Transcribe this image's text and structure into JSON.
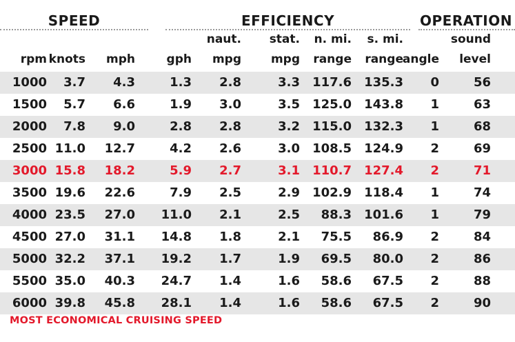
{
  "groups": {
    "speed": "SPEED",
    "efficiency": "EFFICIENCY",
    "operation": "OPERATION"
  },
  "headers": {
    "rpm": [
      "",
      "rpm"
    ],
    "knots": [
      "",
      "knots"
    ],
    "mph": [
      "",
      "mph"
    ],
    "gph": [
      "",
      "gph"
    ],
    "naut_mpg": [
      "naut.",
      "mpg"
    ],
    "stat_mpg": [
      "stat.",
      "mpg"
    ],
    "nmi_range": [
      "n. mi.",
      "range"
    ],
    "smi_range": [
      "s. mi.",
      "range"
    ],
    "angle": [
      "",
      "angle"
    ],
    "sound": [
      "sound",
      "level"
    ]
  },
  "rows": [
    [
      "1000",
      "3.7",
      "4.3",
      "1.3",
      "2.8",
      "3.3",
      "117.6",
      "135.3",
      "0",
      "56"
    ],
    [
      "1500",
      "5.7",
      "6.6",
      "1.9",
      "3.0",
      "3.5",
      "125.0",
      "143.8",
      "1",
      "63"
    ],
    [
      "2000",
      "7.8",
      "9.0",
      "2.8",
      "2.8",
      "3.2",
      "115.0",
      "132.3",
      "1",
      "68"
    ],
    [
      "2500",
      "11.0",
      "12.7",
      "4.2",
      "2.6",
      "3.0",
      "108.5",
      "124.9",
      "2",
      "69"
    ],
    [
      "3000",
      "15.8",
      "18.2",
      "5.9",
      "2.7",
      "3.1",
      "110.7",
      "127.4",
      "2",
      "71"
    ],
    [
      "3500",
      "19.6",
      "22.6",
      "7.9",
      "2.5",
      "2.9",
      "102.9",
      "118.4",
      "1",
      "74"
    ],
    [
      "4000",
      "23.5",
      "27.0",
      "11.0",
      "2.1",
      "2.5",
      "88.3",
      "101.6",
      "1",
      "79"
    ],
    [
      "4500",
      "27.0",
      "31.1",
      "14.8",
      "1.8",
      "2.1",
      "75.5",
      "86.9",
      "2",
      "84"
    ],
    [
      "5000",
      "32.2",
      "37.1",
      "19.2",
      "1.7",
      "1.9",
      "69.5",
      "80.0",
      "2",
      "86"
    ],
    [
      "5500",
      "35.0",
      "40.3",
      "24.7",
      "1.4",
      "1.6",
      "58.6",
      "67.5",
      "2",
      "88"
    ],
    [
      "6000",
      "39.8",
      "45.8",
      "28.1",
      "1.4",
      "1.6",
      "58.6",
      "67.5",
      "2",
      "90"
    ]
  ],
  "highlight_row": 4,
  "footnote": "MOST ECONOMICAL CRUISING SPEED",
  "colors": {
    "highlight": "#e3192b",
    "shade": "#e6e6e6",
    "text": "#1a1a1a"
  }
}
